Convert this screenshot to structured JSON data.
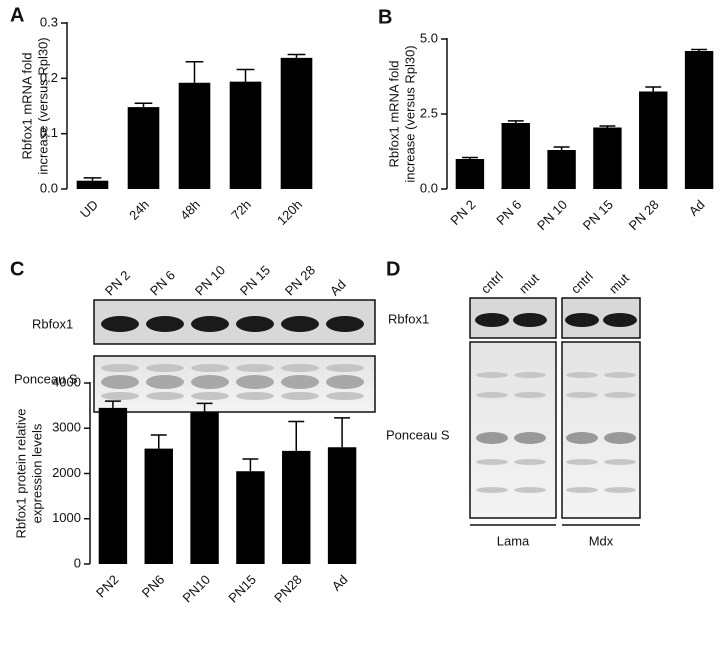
{
  "chart_data": [
    {
      "type": "bar",
      "panel": "A",
      "ylabel": [
        "Rbfox1 mRNA fold",
        "increase (versus Rpl30)"
      ],
      "categories": [
        "UD",
        "24h",
        "48h",
        "72h",
        "120h"
      ],
      "values": [
        0.015,
        0.148,
        0.192,
        0.194,
        0.237
      ],
      "errors": [
        0.005,
        0.007,
        0.038,
        0.022,
        0.006
      ],
      "color": "#000000",
      "ylim": [
        0,
        0.3
      ],
      "yticks": [
        {
          "value": 0,
          "label": "0.0"
        },
        0.1,
        0.2,
        0.3
      ]
    },
    {
      "type": "bar",
      "panel": "B",
      "ylabel": [
        "Rbfox1 mRNA fold",
        "increase (versus Rpl30)"
      ],
      "categories": [
        "PN 2",
        "PN 6",
        "PN 10",
        "PN 15",
        "PN 28",
        "Ad"
      ],
      "values": [
        1.0,
        2.2,
        1.3,
        2.05,
        3.25,
        4.6
      ],
      "errors": [
        0.05,
        0.07,
        0.1,
        0.05,
        0.15,
        0.05
      ],
      "color": "#000000",
      "ylim": [
        0,
        5
      ],
      "yticks": [
        {
          "value": 0,
          "label": "0.0"
        },
        2.5,
        {
          "value": 5,
          "label": "5.0"
        }
      ]
    },
    {
      "type": "bar",
      "panel": "C",
      "ylabel": [
        "Rbfox1  protein relative",
        "expression levels"
      ],
      "categories": [
        "PN2",
        "PN6",
        "PN10",
        "PN15",
        "PN28",
        "Ad"
      ],
      "values": [
        3450,
        2550,
        3350,
        2050,
        2500,
        2580
      ],
      "errors": [
        150,
        300,
        200,
        270,
        650,
        650
      ],
      "color": "#000000",
      "ylim": [
        0,
        4000
      ],
      "yticks": [
        0,
        1000,
        2000,
        3000,
        4000
      ]
    }
  ],
  "blot_c": {
    "lanes": [
      "PN 2",
      "PN 6",
      "PN 10",
      "PN 15",
      "PN 28",
      "Ad"
    ],
    "rows": [
      "Rbfox1",
      "Ponceau S"
    ]
  },
  "blot_d": {
    "panel": "D",
    "lanes": [
      "cntrl",
      "mut",
      "cntrl",
      "mut"
    ],
    "rows": [
      "Rbfox1",
      "Ponceau S"
    ],
    "groups": [
      "Lama",
      "Mdx"
    ]
  }
}
